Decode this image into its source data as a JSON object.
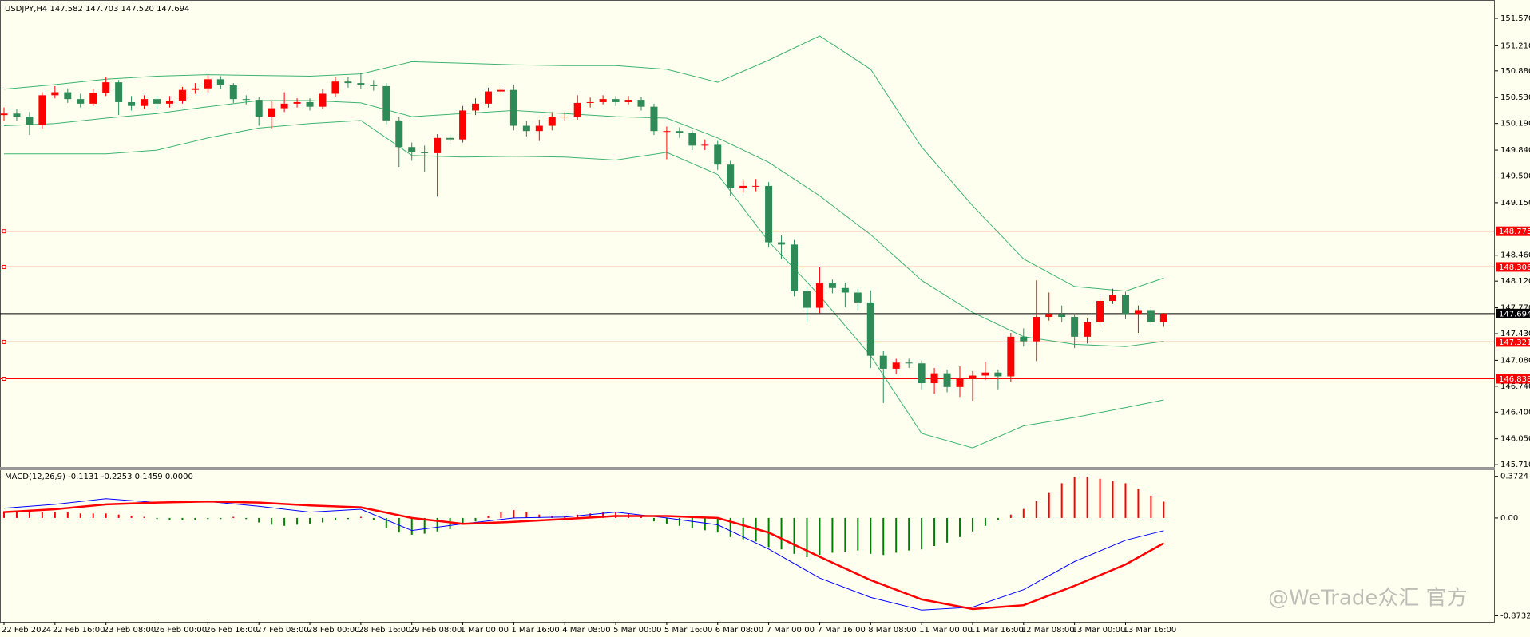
{
  "chart_data": [
    {
      "type": "candlestick",
      "title": "USDJPY,H4  147.582 147.703 147.520 147.694",
      "categories": [
        "22 Feb 2024",
        null,
        null,
        null,
        "22 Feb 16:00",
        null,
        null,
        null,
        "23 Feb 08:00",
        null,
        null,
        null,
        "26 Feb 00:00",
        null,
        null,
        null,
        "26 Feb 16:00",
        null,
        null,
        null,
        "27 Feb 08:00",
        null,
        null,
        null,
        "28 Feb 00:00",
        null,
        null,
        null,
        "28 Feb 16:00",
        null,
        null,
        null,
        "29 Feb 08:00",
        null,
        null,
        null,
        "1 Mar 00:00",
        null,
        null,
        null,
        "1 Mar 16:00",
        null,
        null,
        null,
        "4 Mar 08:00",
        null,
        null,
        null,
        "5 Mar 00:00",
        null,
        null,
        null,
        "5 Mar 16:00",
        null,
        null,
        null,
        "6 Mar 08:00",
        null,
        null,
        null,
        "7 Mar 00:00",
        null,
        null,
        null,
        "7 Mar 16:00",
        null,
        null,
        null,
        "8 Mar 08:00",
        null,
        null,
        null,
        "11 Mar 00:00",
        null,
        null,
        null,
        "11 Mar 16:00",
        null,
        null,
        null,
        "12 Mar 08:00",
        null,
        null,
        null,
        "13 Mar 00:00",
        null,
        null,
        null,
        "13 Mar 16:00",
        null,
        null,
        null
      ],
      "open": [
        150.3,
        150.32,
        150.28,
        150.17,
        150.56,
        150.6,
        150.51,
        150.45,
        150.59,
        150.73,
        150.47,
        150.42,
        150.51,
        150.45,
        150.49,
        150.63,
        150.65,
        150.77,
        150.69,
        150.51,
        150.5,
        150.28,
        150.39,
        150.45,
        150.47,
        150.41,
        150.58,
        150.74,
        150.72,
        150.7,
        150.68,
        150.23,
        149.88,
        149.81,
        149.8,
        150.0,
        149.98,
        150.36,
        150.45,
        150.61,
        150.63,
        150.16,
        150.09,
        150.16,
        150.28,
        150.28,
        150.46,
        150.47,
        150.51,
        150.47,
        150.5,
        150.41,
        150.09,
        150.09,
        150.07,
        149.9,
        149.91,
        149.65,
        149.34,
        149.37,
        149.37,
        148.63,
        148.6,
        147.99,
        147.77,
        148.09,
        148.03,
        147.97,
        147.84,
        147.14,
        146.97,
        147.05,
        147.04,
        146.78,
        146.91,
        146.73,
        146.84,
        146.88,
        146.92,
        146.87,
        147.39,
        147.33,
        147.65,
        147.69,
        147.65,
        147.39,
        147.58,
        147.86,
        147.94,
        147.69,
        147.74,
        147.582
      ],
      "high": [
        150.4,
        150.38,
        150.34,
        150.6,
        150.68,
        150.65,
        150.58,
        150.64,
        150.8,
        150.76,
        150.55,
        150.56,
        150.55,
        150.55,
        150.67,
        150.72,
        150.82,
        150.81,
        150.72,
        150.56,
        150.54,
        150.48,
        150.6,
        150.52,
        150.52,
        150.64,
        150.8,
        150.8,
        150.85,
        150.76,
        150.72,
        150.28,
        149.94,
        149.9,
        150.05,
        150.05,
        150.42,
        150.52,
        150.66,
        150.68,
        150.7,
        150.22,
        150.24,
        150.34,
        150.34,
        150.56,
        150.53,
        150.56,
        150.55,
        150.55,
        150.54,
        150.45,
        150.15,
        150.14,
        150.1,
        149.98,
        149.96,
        149.7,
        149.44,
        149.46,
        149.42,
        148.72,
        148.66,
        148.04,
        148.31,
        148.14,
        148.1,
        148.02,
        148.0,
        147.2,
        147.1,
        147.1,
        147.08,
        146.98,
        146.96,
        147.0,
        146.94,
        147.06,
        146.96,
        147.44,
        147.5,
        148.13,
        147.97,
        147.8,
        147.7,
        147.64,
        147.9,
        148.02,
        147.98,
        147.8,
        147.78,
        147.703
      ],
      "low": [
        150.22,
        150.22,
        150.04,
        150.12,
        150.52,
        150.46,
        150.4,
        150.42,
        150.55,
        150.3,
        150.36,
        150.38,
        150.38,
        150.4,
        150.45,
        150.58,
        150.6,
        150.64,
        150.46,
        150.44,
        150.16,
        150.12,
        150.34,
        150.4,
        150.36,
        150.38,
        150.54,
        150.66,
        150.64,
        150.62,
        150.18,
        149.62,
        149.7,
        149.55,
        149.23,
        149.92,
        149.94,
        150.3,
        150.4,
        150.56,
        150.1,
        150.02,
        149.96,
        150.1,
        150.22,
        150.24,
        150.4,
        150.44,
        150.42,
        150.44,
        150.36,
        150.04,
        149.72,
        150.0,
        149.84,
        149.84,
        149.58,
        149.24,
        149.28,
        149.3,
        148.56,
        148.41,
        147.92,
        147.58,
        147.7,
        147.96,
        147.78,
        147.74,
        146.98,
        146.52,
        146.9,
        146.98,
        146.7,
        146.64,
        146.66,
        146.6,
        146.55,
        146.82,
        146.7,
        146.8,
        147.26,
        147.07,
        147.6,
        147.58,
        147.24,
        147.3,
        147.52,
        147.82,
        147.62,
        147.44,
        147.54,
        147.52
      ],
      "close": [
        150.32,
        150.28,
        150.17,
        150.56,
        150.6,
        150.51,
        150.45,
        150.59,
        150.73,
        150.47,
        150.42,
        150.51,
        150.45,
        150.49,
        150.63,
        150.65,
        150.77,
        150.69,
        150.51,
        150.5,
        150.28,
        150.39,
        150.45,
        150.47,
        150.41,
        150.58,
        150.74,
        150.72,
        150.7,
        150.68,
        150.23,
        149.88,
        149.81,
        149.8,
        150.0,
        149.98,
        150.36,
        150.45,
        150.61,
        150.63,
        150.16,
        150.09,
        150.16,
        150.28,
        150.28,
        150.46,
        150.47,
        150.51,
        150.47,
        150.5,
        150.41,
        150.09,
        150.09,
        150.07,
        149.9,
        149.91,
        149.65,
        149.34,
        149.37,
        149.37,
        148.63,
        148.6,
        147.99,
        147.77,
        148.09,
        148.03,
        147.97,
        147.84,
        147.14,
        146.97,
        147.05,
        147.04,
        146.78,
        146.91,
        146.73,
        146.84,
        146.88,
        146.92,
        146.87,
        147.39,
        147.33,
        147.65,
        147.69,
        147.65,
        147.39,
        147.58,
        147.86,
        147.94,
        147.69,
        147.74,
        147.582,
        147.694
      ],
      "up_color": "#ff0000",
      "down_color": "#2e8b57",
      "bands": {
        "color": "#3cb371",
        "x": [
          0,
          4,
          8,
          12,
          16,
          20,
          24,
          28,
          32,
          36,
          40,
          44,
          48,
          52,
          56,
          60,
          64,
          68,
          72,
          76,
          80,
          84,
          88,
          91
        ],
        "upper": [
          150.64,
          150.7,
          150.77,
          150.81,
          150.83,
          150.82,
          150.81,
          150.84,
          151.0,
          150.98,
          150.96,
          150.95,
          150.95,
          150.9,
          150.73,
          151.02,
          151.34,
          150.9,
          149.88,
          149.11,
          148.41,
          148.05,
          147.99,
          148.16
        ],
        "middle": [
          150.16,
          150.19,
          150.26,
          150.32,
          150.41,
          150.49,
          150.49,
          150.46,
          150.28,
          150.32,
          150.36,
          150.32,
          150.28,
          150.26,
          150.0,
          149.68,
          149.24,
          148.73,
          148.13,
          147.71,
          147.39,
          147.29,
          147.26,
          147.33
        ],
        "lower": [
          149.79,
          149.79,
          149.79,
          149.84,
          150.0,
          150.13,
          150.19,
          150.23,
          149.77,
          149.75,
          149.76,
          149.75,
          149.71,
          149.81,
          149.52,
          148.64,
          147.93,
          147.14,
          146.12,
          145.93,
          146.22,
          146.33,
          146.46,
          146.56
        ]
      },
      "levels": [
        {
          "value": 148.775,
          "color": "#ff0000"
        },
        {
          "value": 148.306,
          "color": "#ff0000"
        },
        {
          "value": 147.321,
          "color": "#ff0000"
        },
        {
          "value": 146.838,
          "color": "#ff0000"
        }
      ],
      "current": {
        "value": 147.694,
        "color": "#000000"
      },
      "ylim": [
        145.68,
        151.79
      ],
      "yticks": [
        {
          "value": 151.57,
          "label": "151.570"
        },
        {
          "value": 151.21,
          "label": "151.210"
        },
        {
          "value": 150.88,
          "label": "150.880"
        },
        {
          "value": 150.53,
          "label": "150.530"
        },
        {
          "value": 150.19,
          "label": "150.190"
        },
        {
          "value": 149.84,
          "label": "149.840"
        },
        {
          "value": 149.5,
          "label": "149.500"
        },
        {
          "value": 149.15,
          "label": "149.150"
        },
        {
          "value": 148.46,
          "label": "148.460"
        },
        {
          "value": 148.12,
          "label": "148.120"
        },
        {
          "value": 147.77,
          "label": "147.770"
        },
        {
          "value": 147.43,
          "label": "147.430"
        },
        {
          "value": 147.08,
          "label": "147.080"
        },
        {
          "value": 146.74,
          "label": "146.740"
        },
        {
          "value": 146.4,
          "label": "146.400"
        },
        {
          "value": 146.05,
          "label": "146.050"
        },
        {
          "value": 145.71,
          "label": "145.710"
        }
      ],
      "watermark": "@WeTrade众汇 官方"
    },
    {
      "type": "macd",
      "title": "MACD(12,26,9) -0.1131 -0.2253 0.1459 0.0000",
      "histogram": [
        0.06,
        0.06,
        0.05,
        0.05,
        0.05,
        0.05,
        0.04,
        0.04,
        0.04,
        0.03,
        0.02,
        0.01,
        -0.01,
        -0.02,
        -0.02,
        -0.02,
        -0.01,
        -0.01,
        0.01,
        -0.01,
        -0.04,
        -0.06,
        -0.07,
        -0.06,
        -0.05,
        -0.04,
        -0.02,
        -0.01,
        0.01,
        -0.02,
        -0.09,
        -0.13,
        -0.15,
        -0.14,
        -0.12,
        -0.1,
        -0.06,
        -0.03,
        0.02,
        0.05,
        0.07,
        0.05,
        0.03,
        0.02,
        0.02,
        0.03,
        0.04,
        0.05,
        0.05,
        0.04,
        0.01,
        -0.03,
        -0.05,
        -0.07,
        -0.09,
        -0.11,
        -0.13,
        -0.17,
        -0.19,
        -0.21,
        -0.26,
        -0.28,
        -0.32,
        -0.35,
        -0.33,
        -0.31,
        -0.3,
        -0.29,
        -0.32,
        -0.33,
        -0.31,
        -0.29,
        -0.28,
        -0.25,
        -0.22,
        -0.17,
        -0.12,
        -0.07,
        -0.02,
        0.03,
        0.08,
        0.15,
        0.23,
        0.31,
        0.37,
        0.37,
        0.35,
        0.33,
        0.31,
        0.26,
        0.2,
        0.1459
      ],
      "up_color": "#ff0000",
      "down_color": "#008000",
      "lines": [
        {
          "color": "#0000ff",
          "width": 1,
          "x": [
            0,
            4,
            8,
            12,
            16,
            20,
            24,
            28,
            32,
            36,
            40,
            44,
            48,
            52,
            56,
            60,
            64,
            68,
            72,
            76,
            80,
            84,
            88,
            91
          ],
          "values": [
            0.087,
            0.121,
            0.173,
            0.138,
            0.147,
            0.104,
            0.052,
            0.078,
            -0.112,
            -0.052,
            0.0,
            0.009,
            0.052,
            0.0,
            -0.061,
            -0.277,
            -0.536,
            -0.709,
            -0.822,
            -0.796,
            -0.64,
            -0.389,
            -0.199,
            -0.1131
          ]
        },
        {
          "color": "#ff0000",
          "width": 2.5,
          "x": [
            0,
            4,
            8,
            12,
            16,
            20,
            24,
            28,
            32,
            36,
            40,
            44,
            48,
            52,
            56,
            60,
            64,
            68,
            72,
            76,
            80,
            84,
            88,
            91
          ],
          "values": [
            0.052,
            0.078,
            0.121,
            0.138,
            0.147,
            0.138,
            0.112,
            0.095,
            0.0,
            -0.052,
            -0.035,
            -0.009,
            0.017,
            0.017,
            0.0,
            -0.13,
            -0.346,
            -0.554,
            -0.727,
            -0.813,
            -0.779,
            -0.606,
            -0.415,
            -0.2253
          ]
        }
      ],
      "ylim": [
        -0.92,
        0.42
      ],
      "yticks": [
        0.3724,
        {
          "value": 0,
          "label": "0.00"
        },
        -0.8732
      ]
    }
  ]
}
